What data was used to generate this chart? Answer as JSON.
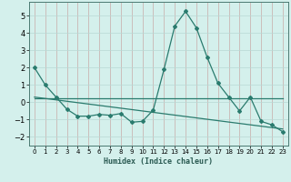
{
  "x": [
    0,
    1,
    2,
    3,
    4,
    5,
    6,
    7,
    8,
    9,
    10,
    11,
    12,
    13,
    14,
    15,
    16,
    17,
    18,
    19,
    20,
    21,
    22,
    23
  ],
  "line_main": [
    2.0,
    1.0,
    0.3,
    -0.4,
    -0.8,
    -0.8,
    -0.7,
    -0.75,
    -0.65,
    -1.15,
    -1.1,
    -0.45,
    1.9,
    4.4,
    5.25,
    4.3,
    2.6,
    1.1,
    0.3,
    -0.5,
    0.3,
    -1.1,
    -1.3,
    -1.7
  ],
  "line_flat": [
    0.25,
    0.25,
    0.25,
    0.25,
    0.25,
    0.25,
    0.25,
    0.25,
    0.25,
    0.25,
    0.25,
    0.25,
    0.25,
    0.25,
    0.25,
    0.25,
    0.25,
    0.25,
    0.25,
    0.25,
    0.25,
    0.25,
    0.25,
    0.25
  ],
  "line_reg": [
    0.3,
    0.22,
    0.14,
    0.06,
    -0.02,
    -0.1,
    -0.18,
    -0.26,
    -0.34,
    -0.42,
    -0.5,
    -0.58,
    -0.66,
    -0.74,
    -0.82,
    -0.9,
    -0.98,
    -1.06,
    -1.14,
    -1.22,
    -1.3,
    -1.38,
    -1.46,
    -1.54
  ],
  "line_color": "#2a7b6e",
  "bg_color": "#d4f0ec",
  "grid_color_v": "#c8aba8",
  "grid_color_h": "#b8d8d4",
  "xlabel": "Humidex (Indice chaleur)",
  "ylim": [
    -2.5,
    5.8
  ],
  "xlim": [
    -0.5,
    23.5
  ],
  "yticks": [
    -2,
    -1,
    0,
    1,
    2,
    3,
    4,
    5
  ],
  "xticks": [
    0,
    1,
    2,
    3,
    4,
    5,
    6,
    7,
    8,
    9,
    10,
    11,
    12,
    13,
    14,
    15,
    16,
    17,
    18,
    19,
    20,
    21,
    22,
    23
  ]
}
